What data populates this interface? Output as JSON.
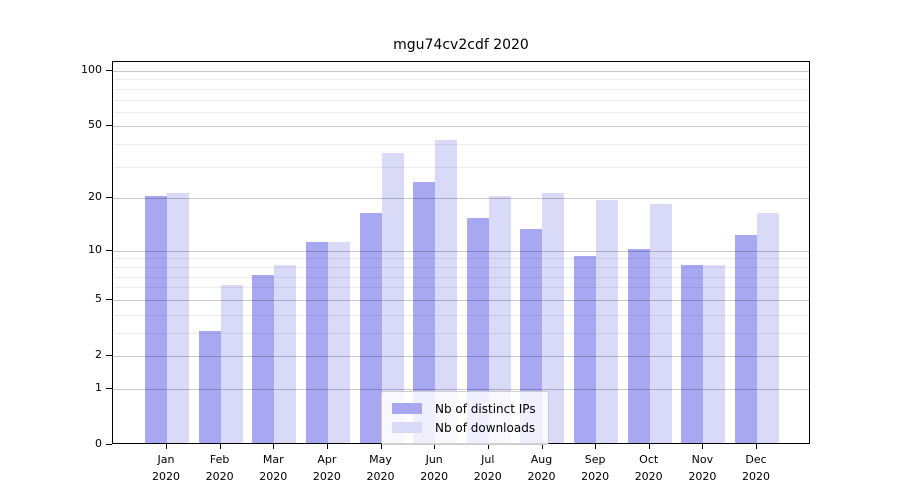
{
  "figure": {
    "title": "mgu74cv2cdf 2020"
  },
  "chart_data": {
    "type": "bar",
    "title": "mgu74cv2cdf 2020",
    "categories": [
      "Jan",
      "Feb",
      "Mar",
      "Apr",
      "May",
      "Jun",
      "Jul",
      "Aug",
      "Sep",
      "Oct",
      "Nov",
      "Dec"
    ],
    "x_tick_second_line": "2020",
    "series": [
      {
        "name": "Nb of distinct IPs",
        "color": "#a7a7f2",
        "values": [
          20,
          3,
          7,
          11,
          16,
          24,
          15,
          13,
          9,
          10,
          8,
          12
        ]
      },
      {
        "name": "Nb of downloads",
        "color": "#d9d9f8",
        "values": [
          21,
          6,
          8,
          11,
          35,
          41,
          20,
          21,
          19,
          18,
          8,
          16
        ]
      }
    ],
    "y_axis": {
      "scale": "log1p",
      "ylim": [
        0,
        100
      ],
      "major_ticks": [
        0,
        1,
        2,
        5,
        10,
        20,
        50,
        100
      ],
      "tick_labels": [
        "0",
        "1",
        "2",
        "5",
        "10",
        "20",
        "50",
        "100"
      ],
      "minor_gridlines": [
        3,
        4,
        6,
        7,
        8,
        9,
        30,
        40,
        60,
        70,
        80,
        90
      ]
    },
    "grid": true,
    "legend": {
      "position": "lower center",
      "entries": [
        "Nb of distinct IPs",
        "Nb of downloads"
      ]
    }
  }
}
